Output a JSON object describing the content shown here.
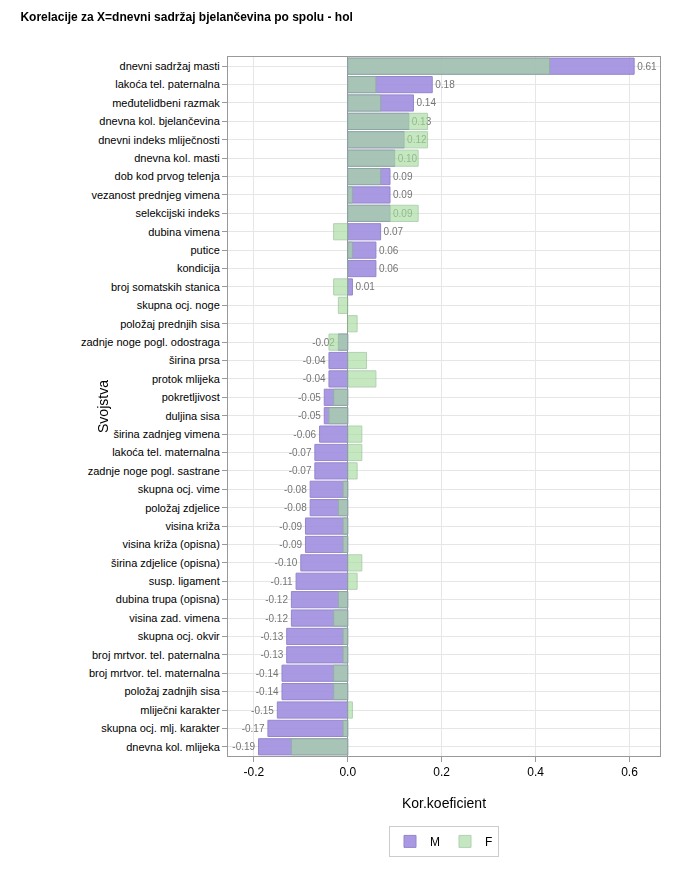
{
  "chart_data": {
    "type": "bar",
    "title": "Korelacije za X=dnevni sadržaj bjelančevina po spolu - hol",
    "x_label": "Kor.koeficient",
    "y_label": "Svojstva",
    "orientation": "horizontal",
    "grid": true,
    "legend": "bottom",
    "categories": [
      "dnevni sadržaj masti",
      "lakoća tel. paternalna",
      "međutelidbeni razmak",
      "dnevna kol. bjelančevina",
      "dnevni indeks mliječnosti",
      "dnevna kol. masti",
      "dob kod prvog telenja",
      "vezanost prednjeg vimena",
      "selekcijski indeks",
      "dubina vimena",
      "putice",
      "kondicija",
      "broj somatskih stanica",
      "skupna ocj. noge",
      "položaj prednjih sisa",
      "zadnje noge pogl. odostraga",
      "širina prsa",
      "protok mlijeka",
      "pokretljivost",
      "duljina sisa",
      "širina zadnjeg vimena",
      "lakoća tel. maternalna",
      "zadnje noge pogl. sastrane",
      "skupna ocj. vime",
      "položaj zdjelice",
      "visina križa",
      "visina križa (opisna)",
      "širina zdjelice (opisna)",
      "susp. ligament",
      "dubina trupa (opisna)",
      "visina zad. vimena",
      "skupna ocj. okvir",
      "broj mrtvor. tel. paternalna",
      "broj mrtvor. tel. maternalna",
      "položaj zadnjih sisa",
      "mliječni karakter",
      "skupna ocj. mlj. karakter",
      "dnevna kol. mlijeka"
    ],
    "series": [
      {
        "name": "M",
        "color": "#a08ee0",
        "data_labels": true,
        "values": [
          0.61,
          0.18,
          0.14,
          0.13,
          0.12,
          0.1,
          0.09,
          0.09,
          0.09,
          0.07,
          0.06,
          0.06,
          0.01,
          null,
          null,
          -0.02,
          -0.04,
          -0.04,
          -0.05,
          -0.05,
          -0.06,
          -0.07,
          -0.07,
          -0.08,
          -0.08,
          -0.09,
          -0.09,
          -0.1,
          -0.11,
          -0.12,
          -0.12,
          -0.13,
          -0.13,
          -0.14,
          -0.14,
          -0.15,
          -0.17,
          -0.19
        ],
        "value_labels": [
          "0.61",
          "0.18",
          "0.14",
          "0.13",
          "0.12",
          "0.10",
          "0.09",
          "0.09",
          "0.09",
          "0.07",
          "0.06",
          "0.06",
          "0.01",
          null,
          null,
          "-0.02",
          "-0.04",
          "-0.04",
          "-0.05",
          "-0.05",
          "-0.06",
          "-0.07",
          "-0.07",
          "-0.08",
          "-0.08",
          "-0.09",
          "-0.09",
          "-0.10",
          "-0.11",
          "-0.12",
          "-0.12",
          "-0.13",
          "-0.13",
          "-0.14",
          "-0.14",
          "-0.15",
          "-0.17",
          "-0.19"
        ]
      },
      {
        "name": "F",
        "color": "#a6dba0",
        "values": [
          0.43,
          0.06,
          0.07,
          0.17,
          0.17,
          0.15,
          0.07,
          0.01,
          0.15,
          -0.03,
          0.01,
          0,
          -0.03,
          -0.02,
          0.02,
          -0.04,
          0.04,
          0.06,
          -0.03,
          -0.04,
          0.03,
          0.03,
          0.02,
          -0.01,
          -0.02,
          -0.01,
          -0.01,
          0.03,
          0.02,
          -0.02,
          -0.03,
          -0.01,
          -0.01,
          -0.03,
          -0.03,
          0.01,
          -0.01,
          -0.12
        ]
      }
    ],
    "xlim": [
      -0.255,
      0.665
    ],
    "xticks": [
      -0.2,
      {
        "value": 0,
        "label": "0.0"
      },
      0.2,
      0.4,
      0.6
    ]
  }
}
